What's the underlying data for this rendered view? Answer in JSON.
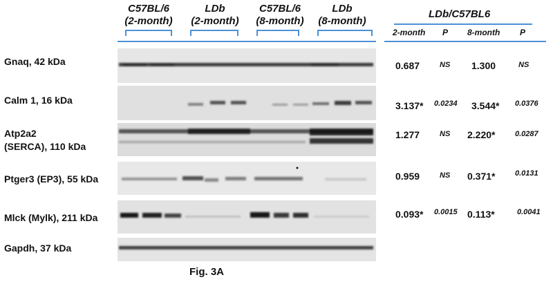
{
  "groups": [
    {
      "line1": "C57BL/6",
      "line2": "(2-month)"
    },
    {
      "line1": "LDb",
      "line2": "(2-month)"
    },
    {
      "line1": "C57BL/6",
      "line2": "(8-month)"
    },
    {
      "line1": "LDb",
      "line2": "(8-month)"
    }
  ],
  "table": {
    "title": "LDb/C57BL6",
    "col_headers": [
      "2-month",
      "P",
      "8-month",
      "P"
    ]
  },
  "rows": [
    {
      "protein": "Gnaq, 42 kDa",
      "ratio_2m": "0.687",
      "p_2m": "NS",
      "ratio_8m": "1.300",
      "p_8m": "NS"
    },
    {
      "protein": "Calm 1, 16 kDa",
      "ratio_2m": "3.137*",
      "p_2m": "0.0234",
      "ratio_8m": "3.544*",
      "p_8m": "0.0376"
    },
    {
      "protein_line1": "Atp2a2",
      "protein_line2": "(SERCA), 110 kDa",
      "ratio_2m": "1.277",
      "p_2m": "NS",
      "ratio_8m": "2.220*",
      "p_8m": "0.0287"
    },
    {
      "protein": "Ptger3 (EP3), 55 kDa",
      "ratio_2m": "0.959",
      "p_2m": "NS",
      "ratio_8m": "0.371*",
      "p_8m": "0.0131"
    },
    {
      "protein": "Mlck (Mylk), 211 kDa",
      "ratio_2m": "0.093*",
      "p_2m": "0.0015",
      "ratio_8m": "0.113*",
      "p_8m": "0.0041"
    },
    {
      "protein": "Gapdh, 37 kDa"
    }
  ],
  "caption": "Fig. 3A",
  "colors": {
    "bracket": "#4a90d9",
    "band": "#1a1a1a",
    "blot_bg": "#e4e4e4"
  }
}
